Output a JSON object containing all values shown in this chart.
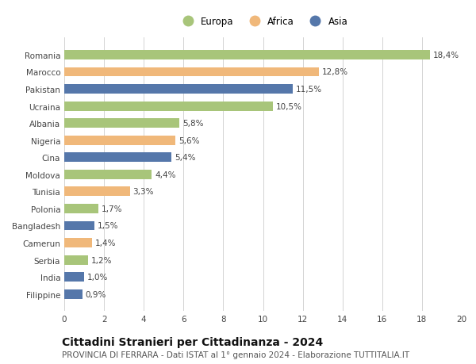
{
  "categories": [
    "Filippine",
    "India",
    "Serbia",
    "Camerun",
    "Bangladesh",
    "Polonia",
    "Tunisia",
    "Moldova",
    "Cina",
    "Nigeria",
    "Albania",
    "Ucraina",
    "Pakistan",
    "Marocco",
    "Romania"
  ],
  "values": [
    0.9,
    1.0,
    1.2,
    1.4,
    1.5,
    1.7,
    3.3,
    4.4,
    5.4,
    5.6,
    5.8,
    10.5,
    11.5,
    12.8,
    18.4
  ],
  "continents": [
    "Asia",
    "Asia",
    "Europa",
    "Africa",
    "Asia",
    "Europa",
    "Africa",
    "Europa",
    "Asia",
    "Africa",
    "Europa",
    "Europa",
    "Asia",
    "Africa",
    "Europa"
  ],
  "colors": {
    "Europa": "#a8c57a",
    "Africa": "#f0b87a",
    "Asia": "#5577aa"
  },
  "title": "Cittadini Stranieri per Cittadinanza - 2024",
  "subtitle": "PROVINCIA DI FERRARA - Dati ISTAT al 1° gennaio 2024 - Elaborazione TUTTITALIA.IT",
  "xlim": [
    0,
    20
  ],
  "xticks": [
    0,
    2,
    4,
    6,
    8,
    10,
    12,
    14,
    16,
    18,
    20
  ],
  "legend_labels": [
    "Europa",
    "Africa",
    "Asia"
  ],
  "background_color": "#ffffff",
  "grid_color": "#cccccc",
  "bar_height": 0.55,
  "label_fontsize": 7.5,
  "title_fontsize": 10,
  "subtitle_fontsize": 7.5,
  "tick_fontsize": 7.5,
  "legend_fontsize": 8.5
}
